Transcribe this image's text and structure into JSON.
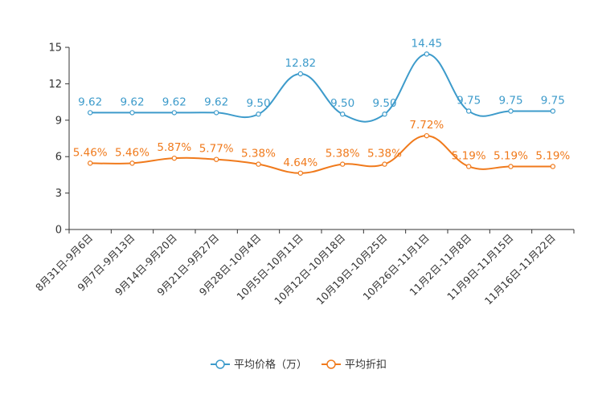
{
  "chart_data": {
    "type": "line",
    "categories": [
      "8月31日-9月6日",
      "9月7日-9月13日",
      "9月14日-9月20日",
      "9月21日-9月27日",
      "9月28日-10月4日",
      "10月5日-10月11日",
      "10月12日-10月18日",
      "10月19日-10月25日",
      "10月26日-11月1日",
      "11月2日-11月8日",
      "11月9日-11月15日",
      "11月16日-11月22日"
    ],
    "y_ticks": [
      "0",
      "3",
      "6",
      "9",
      "12",
      "15"
    ],
    "ylim": [
      0,
      15
    ],
    "series": [
      {
        "name": "平均价格（万）",
        "color": "#3d9bcb",
        "values": [
          9.62,
          9.62,
          9.62,
          9.62,
          9.5,
          12.82,
          9.5,
          9.5,
          14.45,
          9.75,
          9.75,
          9.75
        ],
        "labels": [
          "9.62",
          "9.62",
          "9.62",
          "9.62",
          "9.50",
          "12.82",
          "9.50",
          "9.50",
          "14.45",
          "9.75",
          "9.75",
          "9.75"
        ]
      },
      {
        "name": "平均折扣",
        "color": "#f07a1c",
        "values": [
          5.46,
          5.46,
          5.87,
          5.77,
          5.38,
          4.64,
          5.38,
          5.38,
          7.72,
          5.19,
          5.19,
          5.19
        ],
        "labels": [
          "5.46%",
          "5.46%",
          "5.87%",
          "5.77%",
          "5.38%",
          "4.64%",
          "5.38%",
          "5.38%",
          "7.72%",
          "5.19%",
          "5.19%",
          "5.19%"
        ]
      }
    ]
  }
}
